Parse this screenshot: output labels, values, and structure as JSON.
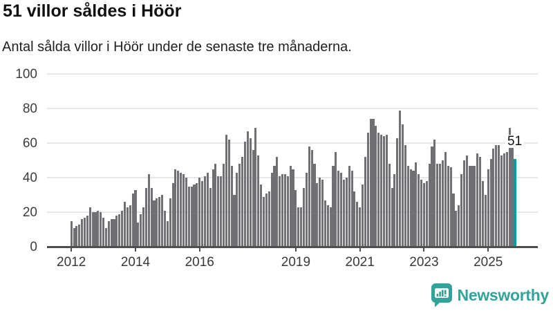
{
  "header": {
    "title": "51 villor såldes i Höör",
    "subtitle": "Antal sålda villor i Höör under de senaste tre månaderna."
  },
  "branding": {
    "name": "Newsworthy",
    "icon": "newsworthy-chart-bubble-icon",
    "logo_color": "#31a39a"
  },
  "colors": {
    "bar": "#6f6f74",
    "highlight": "#00a2a0",
    "grid": "#e7e7e7",
    "axis": "#4d4d4d",
    "text": "#111111"
  },
  "chart_data": {
    "type": "bar",
    "title": "51 villor såldes i Höör",
    "subtitle": "Antal sålda villor i Höör under de senaste tre månaderna.",
    "frequency": "monthly",
    "start": "2012-01",
    "end": "2025-11",
    "ylim": [
      0,
      100
    ],
    "y_ticks": [
      0,
      20,
      40,
      60,
      80,
      100
    ],
    "x_tick_years": [
      2012,
      2014,
      2016,
      2019,
      2021,
      2023,
      2025
    ],
    "x_tick_labels": [
      "2012",
      "2014",
      "2016",
      "2019",
      "2021",
      "2023",
      "2025"
    ],
    "grid": true,
    "legend": false,
    "highlight_last": true,
    "last_value": 51,
    "last_value_label": "51",
    "values": [
      15,
      11,
      12,
      13,
      16,
      17,
      18,
      23,
      20,
      20,
      21,
      20,
      17,
      11,
      15,
      16,
      16,
      18,
      19,
      21,
      26,
      23,
      24,
      31,
      33,
      14,
      19,
      23,
      34,
      42,
      34,
      27,
      28,
      29,
      30,
      21,
      15,
      28,
      37,
      45,
      44,
      43,
      42,
      40,
      35,
      35,
      36,
      37,
      40,
      38,
      41,
      43,
      34,
      45,
      48,
      41,
      41,
      48,
      65,
      62,
      47,
      30,
      43,
      48,
      52,
      61,
      67,
      63,
      56,
      69,
      53,
      36,
      29,
      31,
      32,
      43,
      47,
      52,
      41,
      42,
      42,
      41,
      47,
      45,
      33,
      23,
      23,
      34,
      43,
      58,
      56,
      48,
      37,
      40,
      39,
      27,
      24,
      23,
      47,
      55,
      44,
      43,
      39,
      40,
      47,
      44,
      32,
      26,
      23,
      36,
      52,
      66,
      74,
      74,
      70,
      66,
      65,
      64,
      65,
      48,
      34,
      42,
      63,
      79,
      71,
      59,
      47,
      45,
      44,
      49,
      42,
      39,
      37,
      38,
      48,
      58,
      62,
      48,
      48,
      50,
      55,
      47,
      46,
      31,
      21,
      24,
      42,
      50,
      53,
      47,
      47,
      47,
      54,
      52,
      38,
      30,
      45,
      51,
      57,
      59,
      59,
      53,
      54,
      55,
      69,
      65,
      51
    ]
  }
}
